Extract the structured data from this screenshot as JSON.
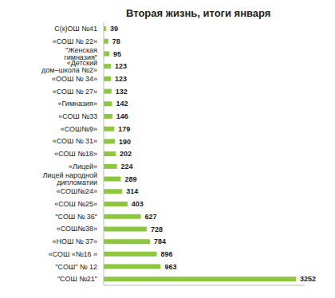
{
  "chart_data": {
    "type": "bar",
    "title": "Вторая жизнь, итоги января",
    "orientation": "horizontal",
    "categories": [
      "С(к)ОШ №41",
      "«СОШ № 22»",
      "\"Женская гимназия\"",
      "«Детский дом–школа №2»",
      "«ООШ № 34»",
      "«СОШ № 27»",
      "«Гимназия»",
      "«СОШ №33",
      "«СОШ№9»",
      "«СОШ № 31»",
      "«СОШ №18»",
      "«Лицей»",
      "Лицей народной дипломатии",
      "«СОШ№24»",
      "«СОШ №25»",
      "\"СОШ № 36\"",
      "«СОШ№38»",
      "«НОШ № 37»",
      "«СОШ «№16 »",
      "\"СОШ\" № 12",
      "\"СОШ №21\""
    ],
    "values": [
      39,
      78,
      95,
      123,
      123,
      132,
      142,
      146,
      179,
      190,
      202,
      224,
      289,
      314,
      403,
      627,
      728,
      784,
      896,
      963,
      3252
    ],
    "color": "#8dc63f",
    "xlim": [
      0,
      3400
    ],
    "grid": false,
    "data_labels": true,
    "tick_labels": "y"
  }
}
